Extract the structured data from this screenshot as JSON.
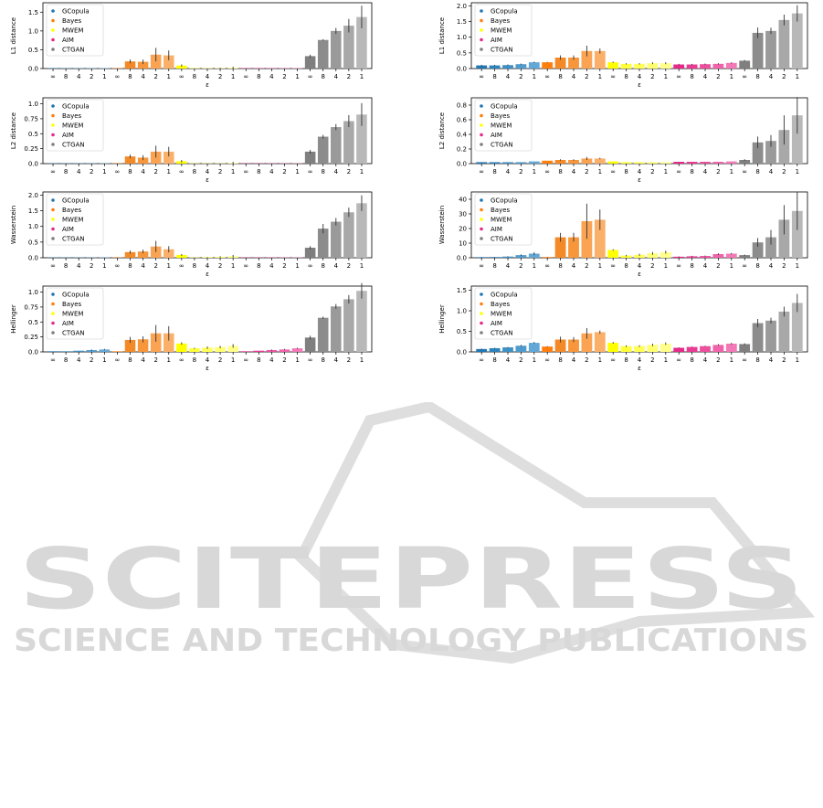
{
  "chart_data": [
    {
      "type": "bar",
      "column": "left",
      "ylabel": "L1 distance",
      "xlabel": "ε",
      "yticks": [
        0.0,
        0.5,
        1.0,
        1.5
      ],
      "ylim": [
        0,
        1.75
      ],
      "groups": [
        {
          "name": "GCopula",
          "values": [
            0.01,
            0.01,
            0.01,
            0.01,
            0.01
          ],
          "err": [
            0,
            0,
            0,
            0,
            0
          ]
        },
        {
          "name": "Bayes",
          "values": [
            0.01,
            0.19,
            0.18,
            0.37,
            0.35
          ],
          "err": [
            0,
            0.05,
            0.06,
            0.18,
            0.13
          ]
        },
        {
          "name": "MWEM",
          "values": [
            0.08,
            0.01,
            0.01,
            0.01,
            0.02
          ],
          "err": [
            0.03,
            0,
            0,
            0.01,
            0.03
          ]
        },
        {
          "name": "AIM",
          "values": [
            0.01,
            0.01,
            0.01,
            0.01,
            0.01
          ],
          "err": [
            0,
            0,
            0,
            0,
            0
          ]
        },
        {
          "name": "CTGAN",
          "values": [
            0.33,
            0.76,
            1.0,
            1.14,
            1.37
          ],
          "err": [
            0.04,
            0.02,
            0.08,
            0.18,
            0.3
          ]
        }
      ]
    },
    {
      "type": "bar",
      "column": "right",
      "ylabel": "L1 distance",
      "xlabel": "ε",
      "yticks": [
        0.0,
        0.5,
        1.0,
        1.5,
        2.0
      ],
      "ylim": [
        0,
        2.1
      ],
      "groups": [
        {
          "name": "GCopula",
          "values": [
            0.1,
            0.1,
            0.11,
            0.14,
            0.2
          ],
          "err": [
            0.02,
            0.02,
            0.02,
            0.02,
            0.02
          ]
        },
        {
          "name": "Bayes",
          "values": [
            0.2,
            0.35,
            0.35,
            0.56,
            0.56
          ],
          "err": [
            0.01,
            0.07,
            0.07,
            0.17,
            0.08
          ]
        },
        {
          "name": "MWEM",
          "values": [
            0.2,
            0.15,
            0.15,
            0.17,
            0.17
          ],
          "err": [
            0.02,
            0.02,
            0.02,
            0.03,
            0.03
          ]
        },
        {
          "name": "AIM",
          "values": [
            0.13,
            0.13,
            0.14,
            0.15,
            0.18
          ],
          "err": [
            0.02,
            0.02,
            0.02,
            0.02,
            0.02
          ]
        },
        {
          "name": "CTGAN",
          "values": [
            0.25,
            1.14,
            1.2,
            1.55,
            1.76
          ],
          "err": [
            0.02,
            0.17,
            0.1,
            0.17,
            0.26
          ]
        }
      ]
    },
    {
      "type": "bar",
      "column": "left",
      "ylabel": "L2 distance",
      "xlabel": "ε",
      "yticks": [
        0.0,
        0.25,
        0.5,
        0.75,
        1.0
      ],
      "ylim": [
        0,
        1.1
      ],
      "groups": [
        {
          "name": "GCopula",
          "values": [
            0.005,
            0.005,
            0.005,
            0.005,
            0.005
          ],
          "err": [
            0,
            0,
            0,
            0,
            0
          ]
        },
        {
          "name": "Bayes",
          "values": [
            0.005,
            0.12,
            0.1,
            0.2,
            0.2
          ],
          "err": [
            0,
            0.03,
            0.04,
            0.1,
            0.08
          ]
        },
        {
          "name": "MWEM",
          "values": [
            0.04,
            0.005,
            0.005,
            0.005,
            0.01
          ],
          "err": [
            0.02,
            0,
            0,
            0,
            0.02
          ]
        },
        {
          "name": "AIM",
          "values": [
            0.005,
            0.005,
            0.005,
            0.005,
            0.005
          ],
          "err": [
            0,
            0,
            0,
            0,
            0
          ]
        },
        {
          "name": "CTGAN",
          "values": [
            0.2,
            0.45,
            0.61,
            0.71,
            0.82
          ],
          "err": [
            0.03,
            0.03,
            0.05,
            0.1,
            0.19
          ]
        }
      ]
    },
    {
      "type": "bar",
      "column": "right",
      "ylabel": "L2 distance",
      "xlabel": "ε",
      "yticks": [
        0.0,
        0.2,
        0.4,
        0.6,
        0.8
      ],
      "ylim": [
        0,
        0.9
      ],
      "groups": [
        {
          "name": "GCopula",
          "values": [
            0.02,
            0.02,
            0.02,
            0.02,
            0.03
          ],
          "err": [
            0,
            0,
            0,
            0,
            0
          ]
        },
        {
          "name": "Bayes",
          "values": [
            0.04,
            0.05,
            0.05,
            0.07,
            0.07
          ],
          "err": [
            0,
            0.01,
            0.01,
            0.02,
            0.01
          ]
        },
        {
          "name": "MWEM",
          "values": [
            0.03,
            0.02,
            0.02,
            0.02,
            0.02
          ],
          "err": [
            0,
            0,
            0,
            0,
            0
          ]
        },
        {
          "name": "AIM",
          "values": [
            0.025,
            0.025,
            0.025,
            0.025,
            0.03
          ],
          "err": [
            0,
            0,
            0,
            0,
            0
          ]
        },
        {
          "name": "CTGAN",
          "values": [
            0.05,
            0.29,
            0.31,
            0.46,
            0.66
          ],
          "err": [
            0.01,
            0.08,
            0.08,
            0.2,
            0.25
          ]
        }
      ]
    },
    {
      "type": "bar",
      "column": "left",
      "ylabel": "Wasserstein",
      "xlabel": "ε",
      "yticks": [
        0.0,
        0.5,
        1.0,
        1.5,
        2.0
      ],
      "ylim": [
        0,
        2.1
      ],
      "groups": [
        {
          "name": "GCopula",
          "values": [
            0.01,
            0.01,
            0.01,
            0.01,
            0.01
          ],
          "err": [
            0,
            0,
            0,
            0,
            0
          ]
        },
        {
          "name": "Bayes",
          "values": [
            0.01,
            0.18,
            0.2,
            0.36,
            0.27
          ],
          "err": [
            0,
            0.05,
            0.06,
            0.18,
            0.1
          ]
        },
        {
          "name": "MWEM",
          "values": [
            0.09,
            0.01,
            0.02,
            0.03,
            0.05
          ],
          "err": [
            0.03,
            0,
            0.01,
            0.02,
            0.04
          ]
        },
        {
          "name": "AIM",
          "values": [
            0.01,
            0.01,
            0.01,
            0.01,
            0.01
          ],
          "err": [
            0,
            0,
            0,
            0,
            0
          ]
        },
        {
          "name": "CTGAN",
          "values": [
            0.32,
            0.93,
            1.15,
            1.45,
            1.74
          ],
          "err": [
            0.05,
            0.15,
            0.12,
            0.15,
            0.25
          ]
        }
      ]
    },
    {
      "type": "bar",
      "column": "right",
      "ylabel": "Wasserstein",
      "xlabel": "ε",
      "yticks": [
        0,
        10,
        20,
        30,
        40
      ],
      "ylim": [
        0,
        45
      ],
      "groups": [
        {
          "name": "GCopula",
          "values": [
            0.4,
            0.5,
            0.8,
            1.8,
            2.8
          ],
          "err": [
            0.1,
            0.1,
            0.2,
            0.5,
            1.0
          ]
        },
        {
          "name": "Bayes",
          "values": [
            0.5,
            14.0,
            14.0,
            25.0,
            26.0
          ],
          "err": [
            0.1,
            3.0,
            3.0,
            12.0,
            7.0
          ]
        },
        {
          "name": "MWEM",
          "values": [
            5.3,
            1.5,
            2.0,
            3.0,
            3.8
          ],
          "err": [
            0.5,
            0.5,
            0.7,
            1.0,
            1.0
          ]
        },
        {
          "name": "AIM",
          "values": [
            0.7,
            1.0,
            1.2,
            2.5,
            2.8
          ],
          "err": [
            0.2,
            0.3,
            0.3,
            0.6,
            0.5
          ]
        },
        {
          "name": "CTGAN",
          "values": [
            1.8,
            10.5,
            14.0,
            26.0,
            32.0
          ],
          "err": [
            0.4,
            3.0,
            5.0,
            10.0,
            13.0
          ]
        }
      ]
    },
    {
      "type": "bar",
      "column": "left",
      "ylabel": "Hellinger",
      "xlabel": "ε",
      "yticks": [
        0.0,
        0.25,
        0.5,
        0.75,
        1.0
      ],
      "ylim": [
        0,
        1.1
      ],
      "groups": [
        {
          "name": "GCopula",
          "values": [
            0.01,
            0.01,
            0.02,
            0.03,
            0.04
          ],
          "err": [
            0,
            0,
            0,
            0.01,
            0.01
          ]
        },
        {
          "name": "Bayes",
          "values": [
            0.01,
            0.2,
            0.21,
            0.31,
            0.31
          ],
          "err": [
            0,
            0.05,
            0.05,
            0.14,
            0.12
          ]
        },
        {
          "name": "MWEM",
          "values": [
            0.14,
            0.06,
            0.07,
            0.08,
            0.1
          ],
          "err": [
            0.02,
            0.01,
            0.02,
            0.02,
            0.03
          ]
        },
        {
          "name": "AIM",
          "values": [
            0.01,
            0.02,
            0.03,
            0.04,
            0.06
          ],
          "err": [
            0,
            0,
            0.01,
            0.01,
            0.01
          ]
        },
        {
          "name": "CTGAN",
          "values": [
            0.24,
            0.57,
            0.76,
            0.88,
            1.02
          ],
          "err": [
            0.03,
            0.02,
            0.04,
            0.07,
            0.13
          ]
        }
      ]
    },
    {
      "type": "bar",
      "column": "right",
      "ylabel": "Hellinger",
      "xlabel": "ε",
      "yticks": [
        0.0,
        0.5,
        1.0,
        1.5
      ],
      "ylim": [
        0,
        1.6
      ],
      "groups": [
        {
          "name": "GCopula",
          "values": [
            0.07,
            0.09,
            0.11,
            0.15,
            0.22
          ],
          "err": [
            0.01,
            0.01,
            0.01,
            0.02,
            0.02
          ]
        },
        {
          "name": "Bayes",
          "values": [
            0.13,
            0.3,
            0.3,
            0.45,
            0.48
          ],
          "err": [
            0.01,
            0.07,
            0.06,
            0.13,
            0.04
          ]
        },
        {
          "name": "MWEM",
          "values": [
            0.22,
            0.14,
            0.14,
            0.17,
            0.2
          ],
          "err": [
            0.02,
            0.02,
            0.02,
            0.03,
            0.03
          ]
        },
        {
          "name": "AIM",
          "values": [
            0.1,
            0.12,
            0.14,
            0.17,
            0.2
          ],
          "err": [
            0.01,
            0.01,
            0.01,
            0.02,
            0.02
          ]
        },
        {
          "name": "CTGAN",
          "values": [
            0.19,
            0.7,
            0.76,
            0.98,
            1.19
          ],
          "err": [
            0.02,
            0.1,
            0.07,
            0.12,
            0.22
          ]
        }
      ]
    }
  ],
  "x_tick_labels": [
    "∞",
    "8",
    "4",
    "2",
    "1"
  ],
  "legend": [
    "GCopula",
    "Bayes",
    "MWEM",
    "AIM",
    "CTGAN"
  ],
  "colors": {
    "GCopula": [
      "#1f77b4",
      "#2d84bd",
      "#3e90c5",
      "#4f9bcd",
      "#62a8d6"
    ],
    "Bayes": [
      "#ff7f0e",
      "#f48a27",
      "#f7963b",
      "#f9a353",
      "#fbb06a"
    ],
    "MWEM": [
      "#ffff00",
      "#ffff3a",
      "#ffff55",
      "#ffff70",
      "#ffff8a"
    ],
    "AIM": [
      "#e7298a",
      "#ea3b94",
      "#ed4f9f",
      "#f063aa",
      "#f378b6"
    ],
    "CTGAN": [
      "#7f7f7f",
      "#8c8c8c",
      "#9a9a9a",
      "#a8a8a8",
      "#b8b8b8"
    ],
    "legend_dots": [
      "#1f77b4",
      "#ff7f0e",
      "#ffff00",
      "#e7298a",
      "#7f7f7f"
    ]
  },
  "watermark": {
    "line1": "SCITEPRESS",
    "line2": "SCIENCE AND TECHNOLOGY PUBLICATIONS"
  }
}
